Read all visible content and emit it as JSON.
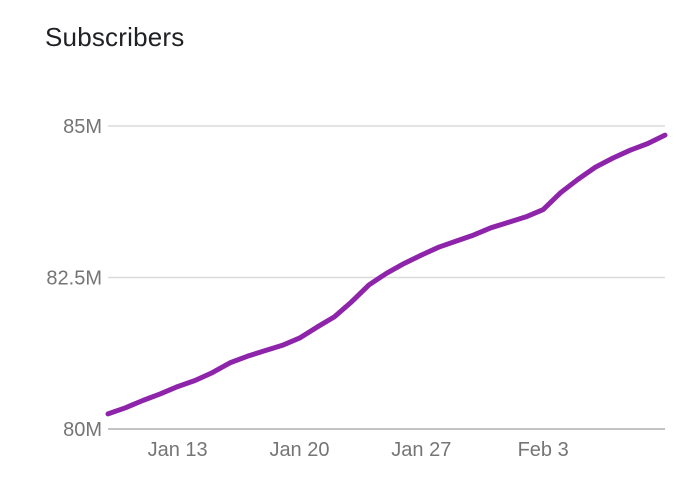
{
  "chart_data": {
    "type": "line",
    "title": "Subscribers",
    "xlabel": "",
    "ylabel": "",
    "x_tick_labels": [
      "Jan 13",
      "Jan 20",
      "Jan 27",
      "Feb 3"
    ],
    "x_tick_days": [
      13,
      20,
      27,
      34
    ],
    "xlim": [
      9,
      41
    ],
    "y_tick_labels": [
      "85M",
      "82.5M",
      "80M"
    ],
    "y_tick_values": [
      85,
      82.5,
      80
    ],
    "ylim": [
      80,
      85
    ],
    "grid": true,
    "legend": "none",
    "series": [
      {
        "color": "#8e24aa",
        "x": [
          9,
          10,
          11,
          12,
          13,
          14,
          15,
          16,
          17,
          18,
          19,
          20,
          21,
          22,
          23,
          24,
          25,
          26,
          27,
          28,
          29,
          30,
          31,
          32,
          33,
          34,
          35,
          36,
          37,
          38,
          39,
          40,
          41
        ],
        "values": [
          80.25,
          80.35,
          80.47,
          80.58,
          80.7,
          80.8,
          80.93,
          81.09,
          81.2,
          81.29,
          81.38,
          81.5,
          81.68,
          81.85,
          82.1,
          82.38,
          82.57,
          82.73,
          82.87,
          83.0,
          83.1,
          83.2,
          83.32,
          83.41,
          83.5,
          83.62,
          83.9,
          84.12,
          84.32,
          84.47,
          84.6,
          84.71,
          84.85
        ]
      }
    ]
  }
}
